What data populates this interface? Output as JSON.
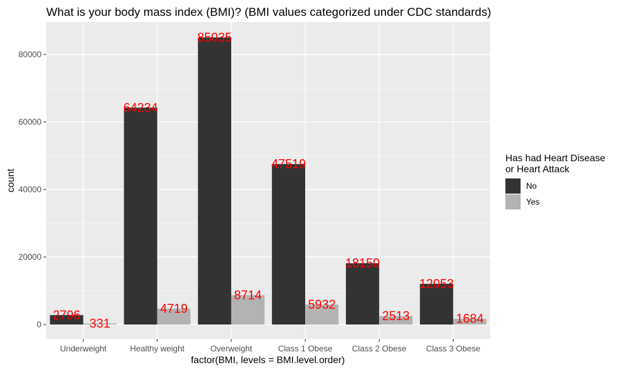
{
  "chart_data": {
    "type": "bar",
    "title": "What is your body mass index (BMI)? (BMI values categorized under CDC standards)",
    "xlabel": "factor(BMI, levels = BMI.level.order)",
    "ylabel": "count",
    "categories": [
      "Underweight",
      "Healthy weight",
      "Overweight",
      "Class 1 Obese",
      "Class 2 Obese",
      "Class 3 Obese"
    ],
    "series": [
      {
        "name": "No",
        "color": "#333333",
        "values": [
          2796,
          64234,
          85035,
          47519,
          18150,
          12053
        ]
      },
      {
        "name": "Yes",
        "color": "#b3b3b3",
        "values": [
          331,
          4719,
          8714,
          5932,
          2513,
          1684
        ]
      }
    ],
    "ylim": [
      0,
      88000
    ],
    "yticks": [
      0,
      20000,
      40000,
      60000,
      80000
    ],
    "grid": true,
    "legend": {
      "title_lines": [
        "Has had Heart Disease",
        "or Heart Attack"
      ],
      "position": "right"
    },
    "data_label_color": "#ff0000",
    "panel_background": "#ebebeb"
  }
}
